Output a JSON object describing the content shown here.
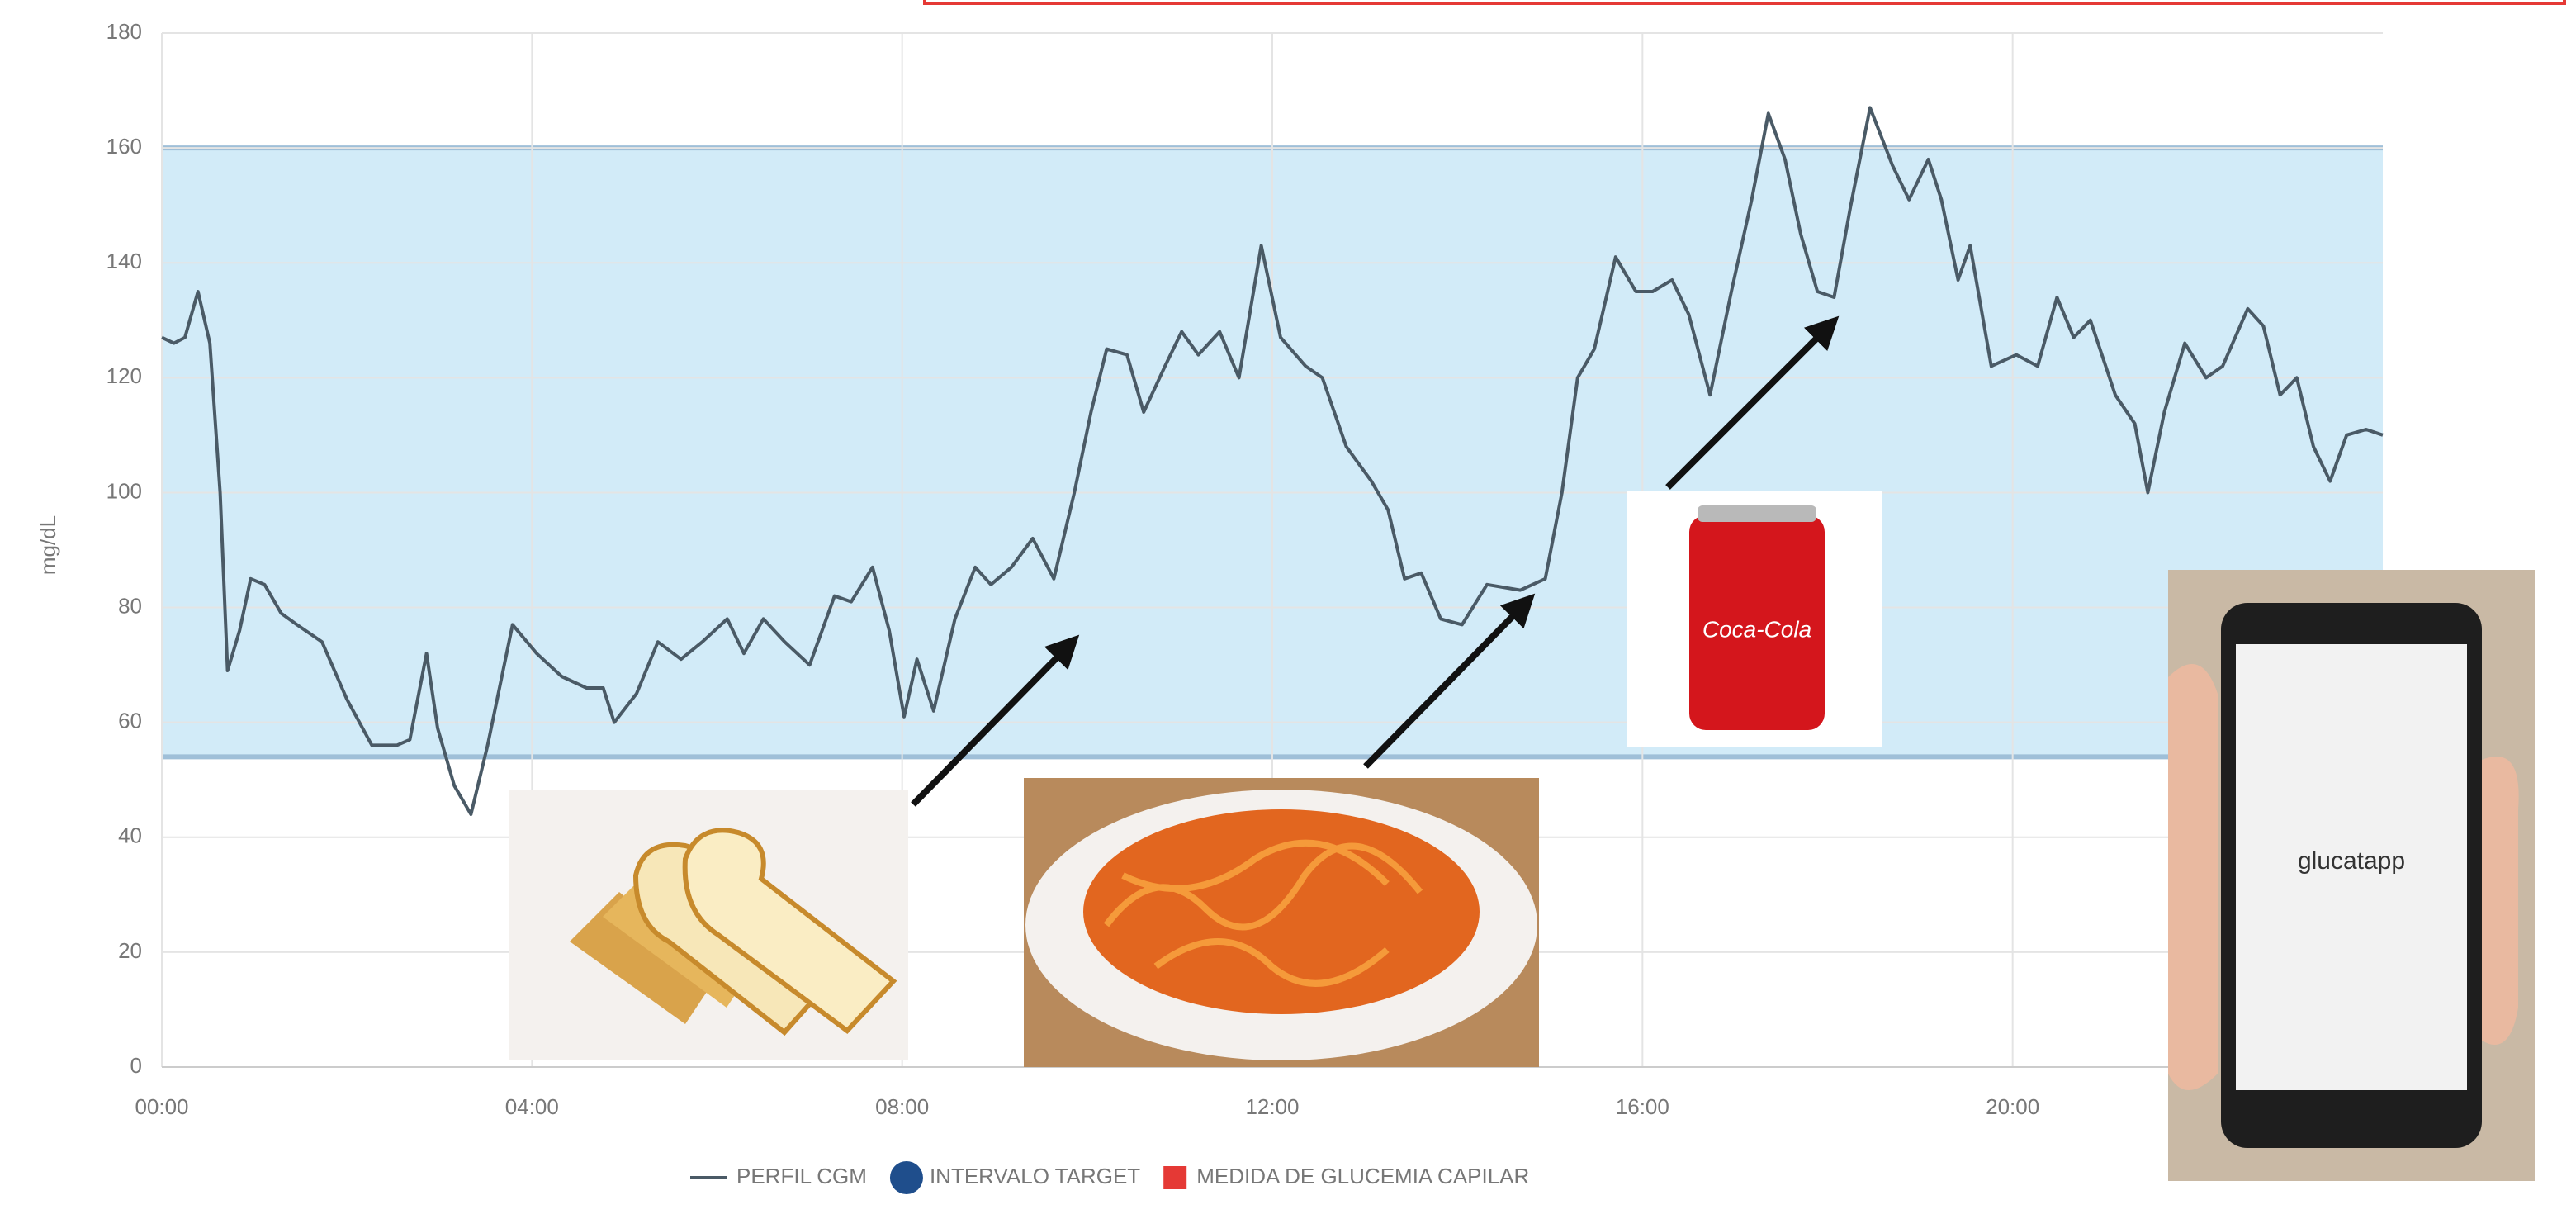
{
  "chart_data": {
    "type": "line",
    "y_label": "mg/dL",
    "xlim": [
      0,
      24
    ],
    "ylim": [
      0,
      180
    ],
    "xticks": [
      {
        "value": 0,
        "label": "00:00"
      },
      {
        "value": 4,
        "label": "04:00"
      },
      {
        "value": 8,
        "label": "08:00"
      },
      {
        "value": 12,
        "label": "12:00"
      },
      {
        "value": 16,
        "label": "16:00"
      },
      {
        "value": 20,
        "label": "20:00"
      }
    ],
    "yticks": [
      0,
      20,
      40,
      60,
      80,
      100,
      120,
      140,
      160,
      180
    ],
    "grid": true,
    "target_range": {
      "name": "INTERVALO TARGET",
      "color": "#1f4e8c",
      "fill": "#d2ebf8",
      "low": 54,
      "high": 160
    },
    "capillary": {
      "name": "MEDIDA DE GLUCEMIA CAPILAR",
      "color": "#e53935"
    },
    "series": [
      {
        "name": "PERFIL CGM",
        "color": "#4a5a66",
        "x": [
          0,
          0.13,
          0.25,
          0.39,
          0.52,
          0.63,
          0.71,
          0.84,
          0.96,
          1.11,
          1.29,
          1.46,
          1.73,
          2.0,
          2.27,
          2.54,
          2.68,
          2.86,
          2.98,
          3.16,
          3.34,
          3.52,
          3.79,
          4.05,
          4.32,
          4.59,
          4.77,
          4.89,
          5.13,
          5.36,
          5.61,
          5.84,
          6.11,
          6.29,
          6.5,
          6.73,
          7.0,
          7.27,
          7.45,
          7.68,
          7.86,
          8.02,
          8.16,
          8.34,
          8.57,
          8.79,
          8.96,
          9.18,
          9.41,
          9.64,
          9.86,
          10.04,
          10.21,
          10.43,
          10.61,
          10.84,
          11.02,
          11.2,
          11.43,
          11.64,
          11.88,
          12.09,
          12.36,
          12.54,
          12.8,
          13.07,
          13.25,
          13.43,
          13.61,
          13.82,
          14.05,
          14.32,
          14.68,
          14.95,
          15.13,
          15.3,
          15.48,
          15.71,
          15.93,
          16.11,
          16.32,
          16.5,
          16.73,
          16.96,
          17.18,
          17.36,
          17.54,
          17.71,
          17.89,
          18.07,
          18.25,
          18.46,
          18.7,
          18.88,
          19.09,
          19.23,
          19.41,
          19.54,
          19.77,
          20.04,
          20.27,
          20.48,
          20.66,
          20.84,
          21.11,
          21.32,
          21.46,
          21.64,
          21.86,
          22.09,
          22.27,
          22.54,
          22.71,
          22.89,
          23.07,
          23.25,
          23.43,
          23.61,
          23.82,
          24.0
        ],
        "values": [
          127,
          126,
          127,
          135,
          126,
          100,
          69,
          76,
          85,
          84,
          79,
          77,
          74,
          64,
          56,
          56,
          57,
          72,
          59,
          49,
          44,
          56,
          77,
          72,
          68,
          66,
          66,
          60,
          65,
          74,
          71,
          74,
          78,
          72,
          78,
          74,
          70,
          82,
          81,
          87,
          76,
          61,
          71,
          62,
          78,
          87,
          84,
          87,
          92,
          85,
          100,
          114,
          125,
          124,
          114,
          122,
          128,
          124,
          128,
          120,
          143,
          127,
          122,
          120,
          108,
          102,
          97,
          85,
          86,
          78,
          77,
          84,
          83,
          85,
          100,
          120,
          125,
          141,
          135,
          135,
          137,
          131,
          117,
          135,
          151,
          166,
          158,
          145,
          135,
          134,
          150,
          167,
          157,
          151,
          158,
          151,
          137,
          143,
          122,
          124,
          122,
          134,
          127,
          130,
          117,
          112,
          100,
          114,
          126,
          120,
          122,
          132,
          129,
          117,
          120,
          108,
          102,
          110,
          111,
          110
        ]
      }
    ]
  },
  "can_text": "Coca-Cola",
  "phone_text": "glucatapp"
}
